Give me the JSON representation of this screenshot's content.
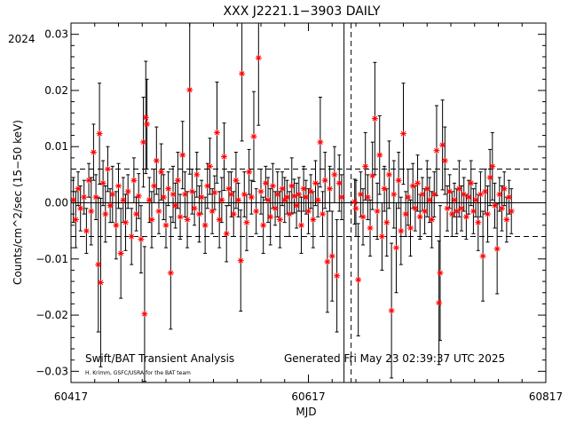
{
  "chart_data": {
    "type": "scatter",
    "title": "XXX J2221.1−3903 DAILY",
    "year_label": "2024",
    "xlabel": "MJD",
    "ylabel": "Counts/cm^2/sec (15−50 keV)",
    "xlim": [
      60417,
      60817
    ],
    "ylim": [
      -0.032,
      0.032
    ],
    "x_ticks": [
      {
        "value": 60417,
        "label": "60417"
      },
      {
        "value": 60617,
        "label": "60617"
      },
      {
        "value": 60817,
        "label": "60817"
      }
    ],
    "y_ticks": [
      {
        "value": -0.03,
        "label": "−0.03"
      },
      {
        "value": -0.02,
        "label": "−0.02"
      },
      {
        "value": -0.01,
        "label": "−0.01"
      },
      {
        "value": 0.0,
        "label": "0.00"
      },
      {
        "value": 0.01,
        "label": "0.01"
      },
      {
        "value": 0.02,
        "label": "0.02"
      },
      {
        "value": 0.03,
        "label": "0.03"
      }
    ],
    "reference_lines": {
      "zero": 0.0,
      "upper_dashed": 0.006,
      "lower_dashed": -0.006
    },
    "vertical_lines": [
      {
        "x": 60647,
        "style": "solid"
      },
      {
        "x": 60653,
        "style": "dashed"
      }
    ],
    "marker_color": "#ff0000",
    "errorbar_color": "#000000",
    "points": [
      [
        60419,
        0.0005,
        0.004
      ],
      [
        60421,
        -0.003,
        0.005
      ],
      [
        60423,
        0.0025,
        0.003
      ],
      [
        60425,
        -0.001,
        0.004
      ],
      [
        60428,
        0.001,
        0.003
      ],
      [
        60430,
        -0.005,
        0.004
      ],
      [
        60432,
        0.004,
        0.003
      ],
      [
        60434,
        -0.0015,
        0.006
      ],
      [
        60436,
        0.009,
        0.005
      ],
      [
        60438,
        0.001,
        0.004
      ],
      [
        60440,
        -0.011,
        0.012
      ],
      [
        60441,
        0.0123,
        0.009
      ],
      [
        60442,
        -0.0142,
        0.015
      ],
      [
        60444,
        0.0035,
        0.004
      ],
      [
        60446,
        -0.002,
        0.005
      ],
      [
        60448,
        0.006,
        0.004
      ],
      [
        60450,
        -0.0005,
        0.003
      ],
      [
        60452,
        0.0015,
        0.005
      ],
      [
        60455,
        -0.004,
        0.006
      ],
      [
        60457,
        0.003,
        0.004
      ],
      [
        60459,
        -0.009,
        0.008
      ],
      [
        60461,
        0.0005,
        0.004
      ],
      [
        60463,
        -0.0035,
        0.005
      ],
      [
        60465,
        0.002,
        0.003
      ],
      [
        60468,
        -0.006,
        0.005
      ],
      [
        60470,
        0.004,
        0.004
      ],
      [
        60472,
        -0.002,
        0.003
      ],
      [
        60474,
        0.0012,
        0.004
      ],
      [
        60476,
        -0.0065,
        0.006
      ],
      [
        60478,
        0.0108,
        0.008
      ],
      [
        60479,
        -0.0198,
        0.012
      ],
      [
        60480,
        0.0152,
        0.01
      ],
      [
        60481,
        0.014,
        0.008
      ],
      [
        60483,
        0.0005,
        0.004
      ],
      [
        60485,
        -0.003,
        0.005
      ],
      [
        60487,
        0.003,
        0.003
      ],
      [
        60489,
        0.0075,
        0.006
      ],
      [
        60491,
        -0.0015,
        0.004
      ],
      [
        60493,
        0.0055,
        0.005
      ],
      [
        60495,
        0.001,
        0.004
      ],
      [
        60497,
        -0.004,
        0.004
      ],
      [
        60499,
        0.0025,
        0.003
      ],
      [
        60501,
        -0.0125,
        0.01
      ],
      [
        60503,
        0.0015,
        0.005
      ],
      [
        60505,
        -0.0005,
        0.004
      ],
      [
        60507,
        0.004,
        0.005
      ],
      [
        60509,
        -0.0025,
        0.004
      ],
      [
        60511,
        0.0085,
        0.006
      ],
      [
        60513,
        0.0015,
        0.004
      ],
      [
        60515,
        -0.003,
        0.005
      ],
      [
        60517,
        0.0201,
        0.015
      ],
      [
        60519,
        0.002,
        0.004
      ],
      [
        60521,
        -0.001,
        0.003
      ],
      [
        60523,
        0.005,
        0.004
      ],
      [
        60525,
        -0.002,
        0.005
      ],
      [
        60527,
        0.001,
        0.003
      ],
      [
        60530,
        -0.004,
        0.005
      ],
      [
        60532,
        0.003,
        0.004
      ],
      [
        60534,
        0.0065,
        0.005
      ],
      [
        60536,
        -0.0015,
        0.004
      ],
      [
        60538,
        0.0018,
        0.003
      ],
      [
        60540,
        0.0125,
        0.009
      ],
      [
        60542,
        -0.003,
        0.005
      ],
      [
        60544,
        0.0005,
        0.004
      ],
      [
        60546,
        0.0082,
        0.006
      ],
      [
        60548,
        -0.0055,
        0.005
      ],
      [
        60550,
        0.0025,
        0.003
      ],
      [
        60552,
        0.0015,
        0.004
      ],
      [
        60554,
        -0.002,
        0.004
      ],
      [
        60556,
        0.004,
        0.005
      ],
      [
        60558,
        0.0005,
        0.003
      ],
      [
        60560,
        -0.0103,
        0.009
      ],
      [
        60561,
        0.023,
        0.012
      ],
      [
        60563,
        0.0015,
        0.004
      ],
      [
        60565,
        -0.0035,
        0.005
      ],
      [
        60567,
        0.0055,
        0.004
      ],
      [
        60569,
        0.001,
        0.003
      ],
      [
        60571,
        0.0118,
        0.008
      ],
      [
        60573,
        -0.0015,
        0.004
      ],
      [
        60575,
        0.0258,
        0.012
      ],
      [
        60577,
        0.002,
        0.004
      ],
      [
        60579,
        -0.004,
        0.005
      ],
      [
        60581,
        0.0035,
        0.003
      ],
      [
        60583,
        0.0005,
        0.004
      ],
      [
        60585,
        -0.0025,
        0.005
      ],
      [
        60587,
        0.003,
        0.004
      ],
      [
        60589,
        -0.001,
        0.003
      ],
      [
        60591,
        0.0015,
        0.004
      ],
      [
        60593,
        -0.003,
        0.005
      ],
      [
        60595,
        0.0025,
        0.003
      ],
      [
        60597,
        0.0005,
        0.004
      ],
      [
        60599,
        0.001,
        0.003
      ],
      [
        60601,
        -0.002,
        0.004
      ],
      [
        60603,
        0.003,
        0.005
      ],
      [
        60605,
        0.0012,
        0.003
      ],
      [
        60607,
        -0.0005,
        0.004
      ],
      [
        60609,
        0.0015,
        0.003
      ],
      [
        60611,
        -0.004,
        0.005
      ],
      [
        60613,
        0.0025,
        0.004
      ],
      [
        60615,
        0.001,
        0.003
      ],
      [
        60617,
        -0.0015,
        0.004
      ],
      [
        60619,
        0.002,
        0.003
      ],
      [
        60621,
        -0.003,
        0.005
      ],
      [
        60623,
        0.0035,
        0.004
      ],
      [
        60625,
        0.0005,
        0.003
      ],
      [
        60627,
        0.0108,
        0.008
      ],
      [
        60629,
        -0.002,
        0.004
      ],
      [
        60631,
        0.004,
        0.005
      ],
      [
        60633,
        -0.0105,
        0.009
      ],
      [
        60635,
        0.0025,
        0.004
      ],
      [
        60637,
        -0.0095,
        0.008
      ],
      [
        60639,
        0.005,
        0.005
      ],
      [
        60641,
        -0.013,
        0.01
      ],
      [
        60643,
        0.0035,
        0.005
      ],
      [
        60645,
        0.001,
        0.004
      ],
      [
        60656,
        0.0002,
        0.004
      ],
      [
        60657,
        -0.001,
        0.005
      ],
      [
        60659,
        -0.0137,
        0.01
      ],
      [
        60661,
        0.0015,
        0.004
      ],
      [
        60663,
        -0.0025,
        0.005
      ],
      [
        60665,
        0.0065,
        0.006
      ],
      [
        60667,
        0.001,
        0.004
      ],
      [
        60669,
        -0.0045,
        0.005
      ],
      [
        60671,
        0.0048,
        0.006
      ],
      [
        60673,
        0.015,
        0.01
      ],
      [
        60675,
        -0.0015,
        0.005
      ],
      [
        60677,
        0.0085,
        0.007
      ],
      [
        60679,
        -0.006,
        0.006
      ],
      [
        60681,
        0.0025,
        0.004
      ],
      [
        60683,
        -0.0035,
        0.006
      ],
      [
        60685,
        0.005,
        0.006
      ],
      [
        60687,
        -0.0192,
        0.012
      ],
      [
        60689,
        0.0015,
        0.006
      ],
      [
        60691,
        -0.008,
        0.008
      ],
      [
        60693,
        0.004,
        0.005
      ],
      [
        60695,
        -0.005,
        0.006
      ],
      [
        60697,
        0.0123,
        0.009
      ],
      [
        60699,
        -0.002,
        0.004
      ],
      [
        60701,
        0.001,
        0.005
      ],
      [
        60703,
        -0.0045,
        0.005
      ],
      [
        60705,
        0.003,
        0.004
      ],
      [
        60707,
        -0.001,
        0.004
      ],
      [
        60709,
        0.0035,
        0.005
      ],
      [
        60711,
        -0.0025,
        0.004
      ],
      [
        60713,
        0.0015,
        0.003
      ],
      [
        60715,
        -0.0015,
        0.004
      ],
      [
        60717,
        0.0025,
        0.005
      ],
      [
        60719,
        0.0005,
        0.004
      ],
      [
        60721,
        -0.003,
        0.005
      ],
      [
        60723,
        0.0015,
        0.004
      ],
      [
        60725,
        0.0093,
        0.008
      ],
      [
        60727,
        -0.0178,
        0.011
      ],
      [
        60728,
        -0.0125,
        0.012
      ],
      [
        60730,
        0.0103,
        0.008
      ],
      [
        60732,
        0.0075,
        0.006
      ],
      [
        60734,
        -0.001,
        0.004
      ],
      [
        60736,
        0.002,
        0.003
      ],
      [
        60738,
        -0.002,
        0.004
      ],
      [
        60740,
        0.0005,
        0.003
      ],
      [
        60742,
        -0.0015,
        0.004
      ],
      [
        60744,
        0.0025,
        0.005
      ],
      [
        60746,
        -0.001,
        0.004
      ],
      [
        60748,
        0.0015,
        0.003
      ],
      [
        60750,
        -0.0025,
        0.004
      ],
      [
        60752,
        0.001,
        0.003
      ],
      [
        60754,
        0.0035,
        0.004
      ],
      [
        60756,
        -0.0015,
        0.004
      ],
      [
        60758,
        0.0005,
        0.003
      ],
      [
        60760,
        -0.0035,
        0.005
      ],
      [
        60762,
        0.0015,
        0.004
      ],
      [
        60764,
        -0.0095,
        0.008
      ],
      [
        60766,
        0.002,
        0.004
      ],
      [
        60768,
        -0.002,
        0.005
      ],
      [
        60770,
        0.0045,
        0.005
      ],
      [
        60772,
        0.0065,
        0.006
      ],
      [
        60774,
        -0.0005,
        0.004
      ],
      [
        60776,
        -0.0082,
        0.008
      ],
      [
        60778,
        0.0015,
        0.003
      ],
      [
        60780,
        -0.001,
        0.004
      ],
      [
        60782,
        0.0025,
        0.003
      ],
      [
        60784,
        -0.003,
        0.004
      ],
      [
        60786,
        0.001,
        0.003
      ],
      [
        60788,
        -0.0015,
        0.004
      ]
    ]
  },
  "footer": {
    "left_title": "Swift/BAT Transient Analysis",
    "credit": "H. Krimm, GSFC/USRA for the BAT team",
    "generated": "Generated Fri May 23 02:39:37 UTC 2025"
  }
}
